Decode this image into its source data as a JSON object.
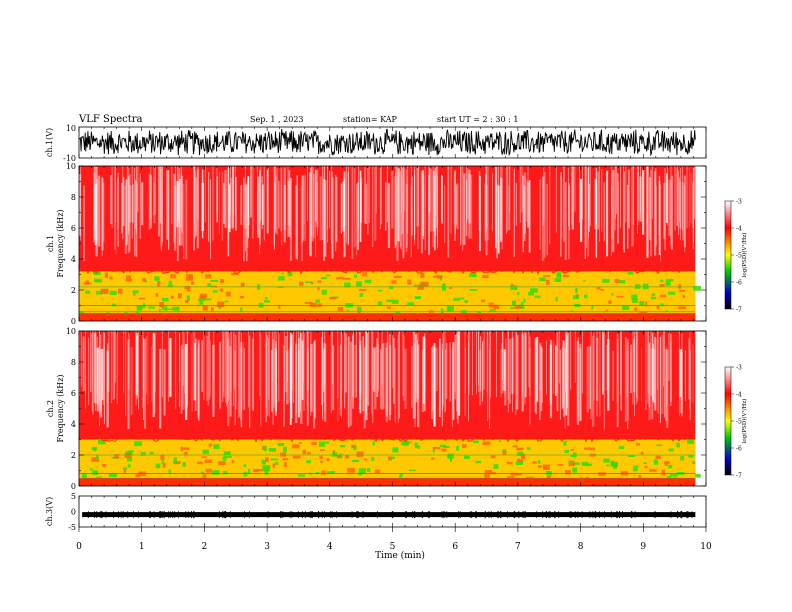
{
  "header": {
    "title": "VLF Spectra",
    "date": "Sep. 1 , 2023",
    "station": "station= KAP",
    "start": "start UT =  2 : 30 : 1"
  },
  "colorbar": {
    "label": "log(PSD)(V²/Hz)",
    "ticks": [
      "-3",
      "-4",
      "-5",
      "-6",
      "-7"
    ],
    "stops": [
      "#ffffff",
      "#ff0000",
      "#ffff00",
      "#00cc00",
      "#0000cc",
      "#000000"
    ]
  },
  "chart_data": [
    {
      "type": "line",
      "title": "",
      "xlabel": "",
      "ylabel": "ch.1(V)",
      "ylim": [
        -10,
        10
      ],
      "xlim": [
        0,
        10
      ],
      "y_tick_labels": [
        "10",
        "-10"
      ],
      "description_data": {
        "x_range_min": [
          0,
          9.83
        ],
        "y_center": 0,
        "y_amplitude": 6
      }
    },
    {
      "type": "heatmap",
      "title": "",
      "ylabel": "ch.1 Frequency (kHz)",
      "ylim": [
        0,
        10
      ],
      "xlim": [
        0,
        10
      ],
      "y_ticks": [
        0,
        2,
        4,
        6,
        8,
        10
      ],
      "data_x_max": 9.83,
      "bands_khz": {
        "high_power_top": 3.2,
        "mid_power_top": 2.5,
        "line_khz": [
          2.2,
          1.0,
          0.6,
          0.3
        ]
      },
      "colorscale": "log(PSD)(V²/Hz)",
      "zlim": [
        -7,
        -3
      ]
    },
    {
      "type": "heatmap",
      "title": "",
      "ylabel": "ch.2 Frequency (kHz)",
      "ylim": [
        0,
        10
      ],
      "xlim": [
        0,
        10
      ],
      "y_ticks": [
        0,
        2,
        4,
        6,
        8,
        10
      ],
      "data_x_max": 9.83,
      "bands_khz": {
        "high_power_top": 3.0,
        "mid_power_top": 2.3,
        "line_khz": [
          2.0,
          0.8,
          0.5,
          0.2
        ]
      },
      "colorscale": "log(PSD)(V²/Hz)",
      "zlim": [
        -7,
        -3
      ]
    },
    {
      "type": "line",
      "title": "",
      "ylabel": "ch.3(V)",
      "ylim": [
        -5,
        5
      ],
      "xlim": [
        0,
        10
      ],
      "y_tick_labels": [
        "5",
        "0",
        "-5"
      ],
      "xlabel": "Time (min)",
      "x_ticks": [
        "0",
        "1",
        "2",
        "3",
        "4",
        "5",
        "6",
        "7",
        "8",
        "9",
        "10"
      ],
      "description_data": {
        "y_center": -1.0
      }
    }
  ]
}
